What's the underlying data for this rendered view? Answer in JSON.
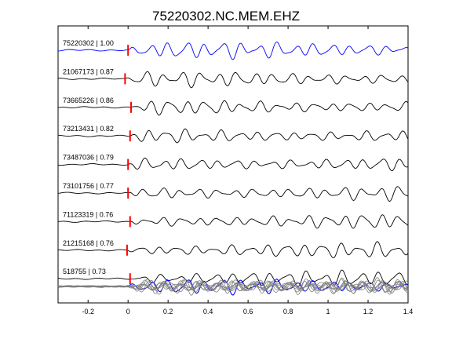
{
  "chart_data": {
    "type": "line",
    "title": "75220302.NC.MEM.EHZ",
    "xlim": [
      -0.35,
      1.4
    ],
    "x_ticks": [
      -0.2,
      0,
      0.2,
      0.4,
      0.6,
      0.8,
      1,
      1.2,
      1.4
    ],
    "x_tick_labels": [
      "-0.2",
      "0",
      "0.2",
      "0.4",
      "0.6",
      "0.8",
      "1",
      "1.2",
      "1.4"
    ],
    "grid": false,
    "legend": "none",
    "colors": {
      "reference": "#0000ff",
      "trace": "#000000",
      "pick": "#ff0000",
      "overlay": "#808080"
    },
    "traces": [
      {
        "label": "75220302 | 1.00",
        "pick_time": 0.0,
        "color": "#0000ff"
      },
      {
        "label": "21067173 | 0.87",
        "pick_time": -0.015,
        "color": "#000000"
      },
      {
        "label": "73665226 | 0.86",
        "pick_time": 0.015,
        "color": "#000000"
      },
      {
        "label": "73213431 | 0.82",
        "pick_time": 0.01,
        "color": "#000000"
      },
      {
        "label": "73487036 | 0.79",
        "pick_time": 0.0,
        "color": "#000000"
      },
      {
        "label": "73101756 | 0.77",
        "pick_time": 0.0,
        "color": "#000000"
      },
      {
        "label": "71123319 | 0.76",
        "pick_time": 0.01,
        "color": "#000000"
      },
      {
        "label": "21215168 | 0.76",
        "pick_time": -0.005,
        "color": "#000000"
      },
      {
        "label": "518755 | 0.73",
        "pick_time": 0.01,
        "color": "#000000"
      }
    ]
  }
}
